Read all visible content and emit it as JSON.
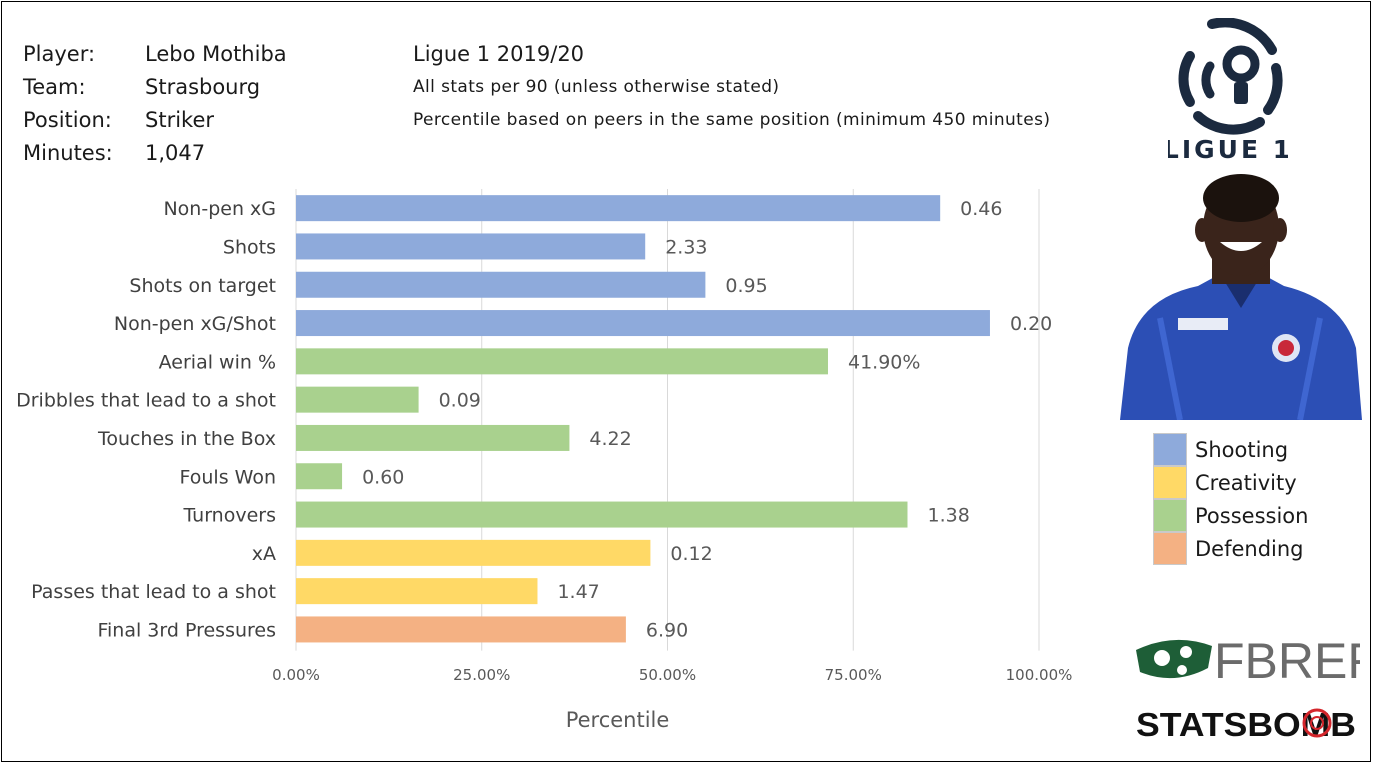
{
  "player": {
    "labels": [
      "Player:",
      "Team:",
      "Position:",
      "Minutes:"
    ],
    "values": [
      "Lebo Mothiba",
      "Strasbourg",
      "Striker",
      "1,047"
    ]
  },
  "league_info": {
    "season": "Ligue 1 2019/20",
    "note1": "All stats per 90 (unless otherwise stated)",
    "note2": "Percentile based on peers in the same position (minimum 450 minutes)"
  },
  "logos": {
    "league_logo_text": "LIGUE 1",
    "fbref": "FBREF",
    "statsbomb": "STATSBOMB"
  },
  "legend": [
    {
      "label": "Shooting",
      "color": "#8eaadb"
    },
    {
      "label": "Creativity",
      "color": "#ffd966"
    },
    {
      "label": "Possession",
      "color": "#a9d18e"
    },
    {
      "label": "Defending",
      "color": "#f4b183"
    }
  ],
  "chart_data": {
    "type": "bar",
    "orientation": "horizontal",
    "xlabel": "Percentile",
    "xlim": [
      0,
      1
    ],
    "xticks": [
      0,
      0.25,
      0.5,
      0.75,
      1.0
    ],
    "xtick_labels": [
      "0.00%",
      "25.00%",
      "50.00%",
      "75.00%",
      "100.00%"
    ],
    "grid": "vertical",
    "legend_position": "right",
    "categories": [
      "Non-pen xG",
      "Shots",
      "Shots on target",
      "Non-pen xG/Shot",
      "Aerial win %",
      "Dribbles that lead to a shot",
      "Touches in the Box",
      "Fouls Won",
      "Turnovers",
      "xA",
      "Passes that lead to a shot",
      "Final 3rd Pressures"
    ],
    "values": [
      0.867,
      0.47,
      0.551,
      0.934,
      0.716,
      0.165,
      0.368,
      0.062,
      0.823,
      0.477,
      0.325,
      0.444
    ],
    "data_labels": [
      "0.46",
      "2.33",
      "0.95",
      "0.20",
      "41.90%",
      "0.09",
      "4.22",
      "0.60",
      "1.38",
      "0.12",
      "1.47",
      "6.90"
    ],
    "groups": [
      "Shooting",
      "Shooting",
      "Shooting",
      "Shooting",
      "Possession",
      "Possession",
      "Possession",
      "Possession",
      "Possession",
      "Creativity",
      "Creativity",
      "Defending"
    ]
  }
}
